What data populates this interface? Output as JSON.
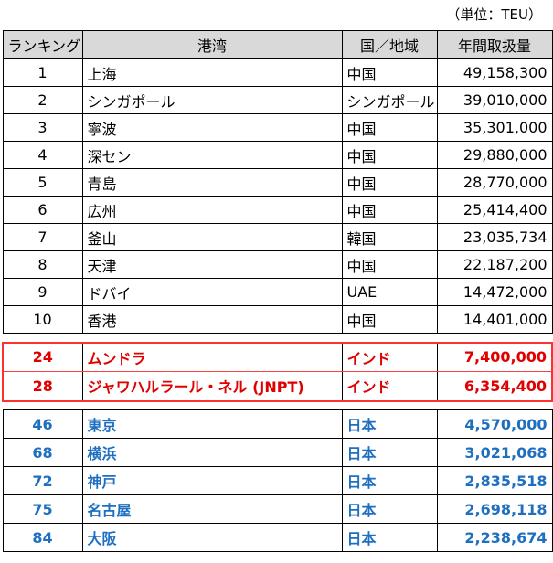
{
  "unit_note": "（単位：TEU）",
  "header": {
    "rank": "ランキング",
    "port": "港湾",
    "country": "国／地域",
    "volume": "年間取扱量"
  },
  "top_rows": [
    {
      "rank": "1",
      "port": "上海",
      "country": "中国",
      "volume": "49,158,300"
    },
    {
      "rank": "2",
      "port": "シンガポール",
      "country": "シンガポール",
      "volume": "39,010,000"
    },
    {
      "rank": "3",
      "port": "寧波",
      "country": "中国",
      "volume": "35,301,000"
    },
    {
      "rank": "4",
      "port": "深セン",
      "country": "中国",
      "volume": "29,880,000"
    },
    {
      "rank": "5",
      "port": "青島",
      "country": "中国",
      "volume": "28,770,000"
    },
    {
      "rank": "6",
      "port": "広州",
      "country": "中国",
      "volume": "25,414,400"
    },
    {
      "rank": "7",
      "port": "釜山",
      "country": "韓国",
      "volume": "23,035,734"
    },
    {
      "rank": "8",
      "port": "天津",
      "country": "中国",
      "volume": "22,187,200"
    },
    {
      "rank": "9",
      "port": "ドバイ",
      "country": "UAE",
      "volume": "14,472,000"
    },
    {
      "rank": "10",
      "port": "香港",
      "country": "中国",
      "volume": "14,401,000"
    }
  ],
  "india_rows": [
    {
      "rank": "24",
      "port": "ムンドラ",
      "country": "インド",
      "volume": "7,400,000"
    },
    {
      "rank": "28",
      "port": "ジャワハルラール・ネル (JNPT)",
      "country": "インド",
      "volume": "6,354,400"
    }
  ],
  "japan_rows": [
    {
      "rank": "46",
      "port": "東京",
      "country": "日本",
      "volume": "4,570,000"
    },
    {
      "rank": "68",
      "port": "横浜",
      "country": "日本",
      "volume": "3,021,068"
    },
    {
      "rank": "72",
      "port": "神戸",
      "country": "日本",
      "volume": "2,835,518"
    },
    {
      "rank": "75",
      "port": "名古屋",
      "country": "日本",
      "volume": "2,698,118"
    },
    {
      "rank": "84",
      "port": "大阪",
      "country": "日本",
      "volume": "2,238,674"
    }
  ],
  "colors": {
    "india_text": "#e00000",
    "india_border": "#ff3030",
    "japan_text": "#1f6fc1",
    "header_bg": "#d9d9d9"
  }
}
